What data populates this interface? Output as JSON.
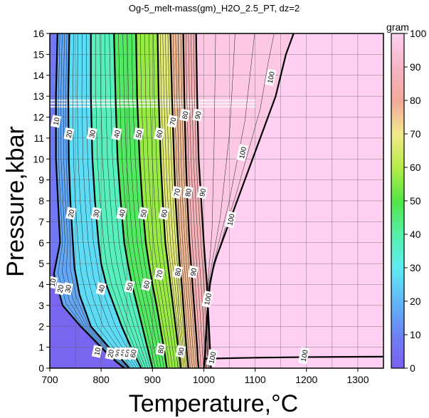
{
  "chart_data": {
    "type": "heatmap",
    "title": "Og-5_melt-mass(gm)_H2O_2.5_PT, dz=2",
    "xlabel": "Temperature,°C",
    "ylabel": "Pressure,kbar",
    "xlim": [
      700,
      1350
    ],
    "ylim": [
      0,
      16
    ],
    "x_ticks": [
      700,
      800,
      900,
      1000,
      1100,
      1200,
      1300
    ],
    "y_ticks": [
      0,
      1,
      2,
      3,
      4,
      5,
      6,
      7,
      8,
      9,
      10,
      11,
      12,
      13,
      14,
      15,
      16
    ],
    "grid": true,
    "colorbar": {
      "label": "gram",
      "range": [
        0,
        100
      ],
      "ticks": [
        0,
        10,
        20,
        30,
        40,
        50,
        60,
        70,
        80,
        90,
        100
      ],
      "stops": [
        {
          "v": 0,
          "c": "#7b5ff0"
        },
        {
          "v": 10,
          "c": "#6b83f4"
        },
        {
          "v": 20,
          "c": "#5fb8f7"
        },
        {
          "v": 30,
          "c": "#5fecf4"
        },
        {
          "v": 40,
          "c": "#55f0a8"
        },
        {
          "v": 50,
          "c": "#52e646"
        },
        {
          "v": 60,
          "c": "#b6ec48"
        },
        {
          "v": 70,
          "c": "#f3e98c"
        },
        {
          "v": 80,
          "c": "#f2a79a"
        },
        {
          "v": 90,
          "c": "#f7b6c6"
        },
        {
          "v": 100,
          "c": "#ffd0f1"
        }
      ]
    },
    "contour_levels": [
      10,
      20,
      30,
      40,
      50,
      60,
      70,
      80,
      90,
      100
    ],
    "contours": [
      {
        "level": 10,
        "points": [
          [
            715,
            16
          ],
          [
            712,
            13
          ],
          [
            712,
            10
          ],
          [
            716,
            8
          ],
          [
            720,
            6
          ],
          [
            708,
            4.5
          ],
          [
            725,
            3
          ],
          [
            760,
            2
          ],
          [
            800,
            1
          ],
          [
            820,
            0.5
          ],
          [
            845,
            0
          ]
        ]
      },
      {
        "level": 20,
        "points": [
          [
            738,
            16
          ],
          [
            736,
            13
          ],
          [
            737,
            10
          ],
          [
            740,
            8
          ],
          [
            745,
            6
          ],
          [
            748,
            4.8
          ],
          [
            758,
            3.5
          ],
          [
            780,
            2
          ],
          [
            815,
            1
          ],
          [
            835,
            0.55
          ],
          [
            855,
            0
          ]
        ]
      },
      {
        "level": 30,
        "points": [
          [
            780,
            16
          ],
          [
            780,
            13
          ],
          [
            783,
            10
          ],
          [
            788,
            8
          ],
          [
            795,
            6
          ],
          [
            800,
            5
          ],
          [
            810,
            4
          ],
          [
            825,
            3
          ],
          [
            840,
            2
          ],
          [
            858,
            1
          ],
          [
            868,
            0.5
          ],
          [
            878,
            0
          ]
        ]
      },
      {
        "level": 40,
        "points": [
          [
            825,
            16
          ],
          [
            828,
            13
          ],
          [
            832,
            10
          ],
          [
            838,
            8
          ],
          [
            845,
            6
          ],
          [
            852,
            5
          ],
          [
            860,
            4
          ],
          [
            870,
            3
          ],
          [
            880,
            2
          ],
          [
            890,
            1
          ],
          [
            895,
            0.5
          ],
          [
            900,
            0
          ]
        ]
      },
      {
        "level": 50,
        "points": [
          [
            868,
            16
          ],
          [
            870,
            13
          ],
          [
            875,
            10
          ],
          [
            880,
            8
          ],
          [
            887,
            6
          ],
          [
            893,
            5
          ],
          [
            900,
            4
          ],
          [
            908,
            3
          ],
          [
            915,
            2
          ],
          [
            922,
            1
          ],
          [
            925,
            0.5
          ],
          [
            928,
            0
          ]
        ]
      },
      {
        "level": 60,
        "points": [
          [
            910,
            16
          ],
          [
            912,
            13
          ],
          [
            916,
            10
          ],
          [
            920,
            8
          ],
          [
            925,
            6
          ],
          [
            930,
            5
          ],
          [
            935,
            4
          ],
          [
            940,
            3
          ],
          [
            945,
            2
          ],
          [
            950,
            1
          ],
          [
            953,
            0.5
          ],
          [
            955,
            0
          ]
        ]
      },
      {
        "level": 70,
        "points": [
          [
            935,
            16
          ],
          [
            938,
            13
          ],
          [
            942,
            10
          ],
          [
            945,
            8
          ],
          [
            950,
            6
          ],
          [
            953,
            5
          ],
          [
            957,
            4
          ],
          [
            960,
            3
          ],
          [
            963,
            2
          ],
          [
            966,
            1
          ],
          [
            968,
            0.5
          ],
          [
            970,
            0
          ]
        ]
      },
      {
        "level": 80,
        "points": [
          [
            960,
            16
          ],
          [
            962,
            13
          ],
          [
            965,
            10
          ],
          [
            968,
            8
          ],
          [
            972,
            6
          ],
          [
            975,
            5
          ],
          [
            978,
            4
          ],
          [
            981,
            3
          ],
          [
            984,
            2
          ],
          [
            987,
            1
          ],
          [
            988,
            0.5
          ],
          [
            990,
            0
          ]
        ]
      },
      {
        "level": 90,
        "points": [
          [
            985,
            16
          ],
          [
            987,
            13
          ],
          [
            990,
            10
          ],
          [
            995,
            8
          ],
          [
            1000,
            6
          ],
          [
            1003,
            5
          ],
          [
            1006,
            4
          ],
          [
            1008,
            3
          ],
          [
            1010,
            2
          ],
          [
            1012,
            1
          ],
          [
            1013,
            0.5
          ],
          [
            1014,
            0
          ]
        ]
      },
      {
        "level": 100,
        "points": [
          [
            1175,
            16
          ],
          [
            1160,
            15
          ],
          [
            1140,
            13
          ],
          [
            1110,
            11
          ],
          [
            1080,
            9
          ],
          [
            1050,
            7
          ],
          [
            1020,
            5
          ],
          [
            1012,
            4
          ],
          [
            1008,
            3
          ],
          [
            1005,
            2
          ],
          [
            1003,
            1
          ],
          [
            1002,
            0.5
          ],
          [
            1000,
            0
          ]
        ]
      },
      {
        "level": 100,
        "points": [
          [
            1000,
            0.45
          ],
          [
            1100,
            0.5
          ],
          [
            1200,
            0.53
          ],
          [
            1350,
            0.55
          ]
        ]
      }
    ],
    "contour_labels": [
      {
        "text": "10",
        "x": 712,
        "y": 11.8
      },
      {
        "text": "20",
        "x": 737,
        "y": 11.2
      },
      {
        "text": "30",
        "x": 782,
        "y": 11.2
      },
      {
        "text": "40",
        "x": 830,
        "y": 11.2
      },
      {
        "text": "50",
        "x": 873,
        "y": 11.2
      },
      {
        "text": "60",
        "x": 913,
        "y": 11.2
      },
      {
        "text": "70",
        "x": 939,
        "y": 11.8
      },
      {
        "text": "80",
        "x": 963,
        "y": 12.1
      },
      {
        "text": "90",
        "x": 988,
        "y": 12.1
      },
      {
        "text": "100",
        "x": 1130,
        "y": 13.9
      },
      {
        "text": "20",
        "x": 741,
        "y": 7.4
      },
      {
        "text": "30",
        "x": 790,
        "y": 7.4
      },
      {
        "text": "40",
        "x": 840,
        "y": 7.4
      },
      {
        "text": "50",
        "x": 882,
        "y": 7.4
      },
      {
        "text": "60",
        "x": 922,
        "y": 7.4
      },
      {
        "text": "70",
        "x": 947,
        "y": 8.4
      },
      {
        "text": "80",
        "x": 969,
        "y": 8.4
      },
      {
        "text": "90",
        "x": 997,
        "y": 8.4
      },
      {
        "text": "100",
        "x": 1075,
        "y": 10.3
      },
      {
        "text": "100",
        "x": 1052,
        "y": 7.1
      },
      {
        "text": "10",
        "x": 705,
        "y": 4.1
      },
      {
        "text": "20",
        "x": 720,
        "y": 3.8
      },
      {
        "text": "30",
        "x": 735,
        "y": 3.8
      },
      {
        "text": "40",
        "x": 800,
        "y": 3.8
      },
      {
        "text": "50",
        "x": 855,
        "y": 3.9
      },
      {
        "text": "60",
        "x": 888,
        "y": 4.0
      },
      {
        "text": "70",
        "x": 913,
        "y": 4.5
      },
      {
        "text": "80",
        "x": 949,
        "y": 4.6
      },
      {
        "text": "90",
        "x": 979,
        "y": 4.6
      },
      {
        "text": "100",
        "x": 1007,
        "y": 3.3
      },
      {
        "text": "10",
        "x": 792,
        "y": 0.8
      },
      {
        "text": "20",
        "x": 818,
        "y": 0.7
      },
      {
        "text": "30",
        "x": 833,
        "y": 0.7
      },
      {
        "text": "40",
        "x": 843,
        "y": 0.7
      },
      {
        "text": "50",
        "x": 852,
        "y": 0.7
      },
      {
        "text": "60",
        "x": 862,
        "y": 0.7
      },
      {
        "text": "80",
        "x": 916,
        "y": 0.9
      },
      {
        "text": "90",
        "x": 955,
        "y": 0.8
      },
      {
        "text": "100",
        "x": 1016,
        "y": 0.5
      },
      {
        "text": "100",
        "x": 1195,
        "y": 0.6
      }
    ],
    "interpolation_artifacts": [
      {
        "y": 12.5
      },
      {
        "y": 12.65
      },
      {
        "y": 12.8
      }
    ]
  }
}
